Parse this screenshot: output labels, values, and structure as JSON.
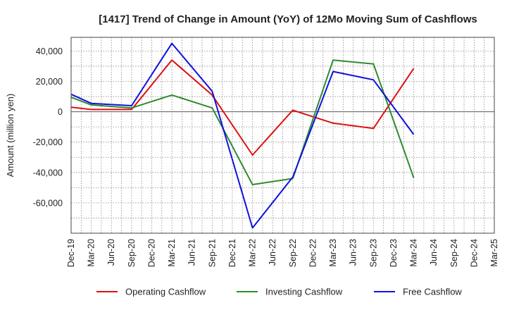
{
  "chart_data": {
    "type": "line",
    "title": "[1417]  Trend of Change in Amount (YoY) of 12Mo Moving Sum of Cashflows",
    "xlabel": "",
    "ylabel": "Amount (million yen)",
    "ylim": [
      -80000,
      49000
    ],
    "yticks": [
      40000,
      20000,
      0,
      -20000,
      -40000,
      -60000
    ],
    "ytick_labels": [
      "40,000",
      "20,000",
      "0",
      "-20,000",
      "-40,000",
      "-60,000"
    ],
    "categories": [
      "Dec-19",
      "Mar-20",
      "Jun-20",
      "Sep-20",
      "Dec-20",
      "Mar-21",
      "Jun-21",
      "Sep-21",
      "Dec-21",
      "Mar-22",
      "Jun-22",
      "Sep-22",
      "Dec-22",
      "Mar-23",
      "Jun-23",
      "Sep-23",
      "Dec-23",
      "Mar-24",
      "Jun-24",
      "Sep-24",
      "Dec-24",
      "Mar-25"
    ],
    "grid": true,
    "legend_position": "bottom",
    "series": [
      {
        "name": "Operating Cashflow",
        "color": "#dd1111",
        "values": [
          3000,
          1500,
          null,
          1500,
          null,
          34000,
          null,
          11000,
          null,
          -28500,
          null,
          1000,
          null,
          -7500,
          null,
          -11000,
          null,
          28500,
          null,
          null,
          null,
          null
        ]
      },
      {
        "name": "Investing Cashflow",
        "color": "#2e8b2e",
        "values": [
          9500,
          4500,
          null,
          2500,
          null,
          11000,
          null,
          2500,
          null,
          -48000,
          null,
          -44000,
          null,
          34000,
          null,
          31500,
          null,
          -43500,
          null,
          null,
          null,
          null
        ]
      },
      {
        "name": "Free Cashflow",
        "color": "#1111dd",
        "values": [
          11500,
          5500,
          null,
          4000,
          null,
          45000,
          null,
          13500,
          null,
          -76500,
          null,
          -43000,
          null,
          26500,
          null,
          21000,
          null,
          -15000,
          null,
          null,
          null,
          null
        ]
      }
    ]
  }
}
